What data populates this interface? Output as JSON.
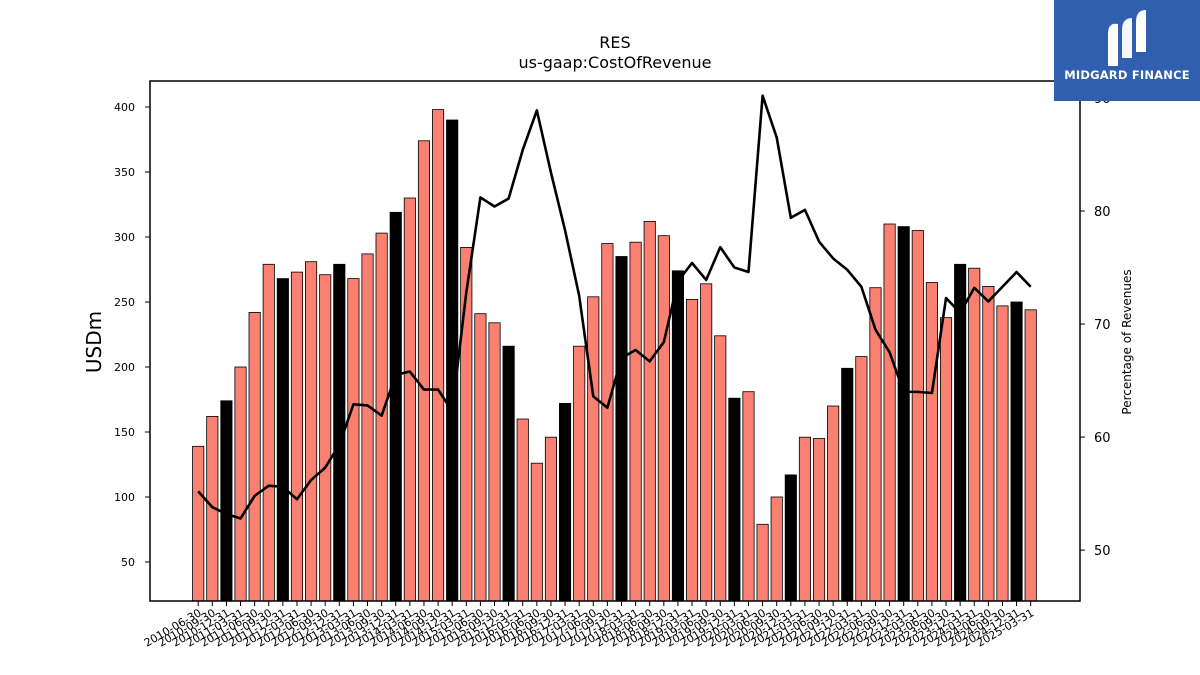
{
  "chart_data": {
    "type": "bar",
    "title": "RES",
    "subtitle": "us-gaap:CostOfRevenue",
    "ylabel": "USDm",
    "y2label": "Percentage of Revenues",
    "ylim": [
      20,
      420
    ],
    "y2lim": [
      45.5,
      91.5
    ],
    "yticks": [
      50,
      100,
      150,
      200,
      250,
      300,
      350,
      400
    ],
    "y2ticks": [
      50,
      60,
      70,
      80,
      90
    ],
    "categories": [
      "2010-06-30",
      "2010-09-30",
      "2010-12-31",
      "2011-03-31",
      "2011-06-30",
      "2011-09-30",
      "2011-12-31",
      "2012-03-31",
      "2012-06-30",
      "2012-09-30",
      "2012-12-31",
      "2013-03-31",
      "2013-06-30",
      "2013-09-30",
      "2013-12-31",
      "2014-03-31",
      "2014-06-30",
      "2014-09-30",
      "2014-12-31",
      "2015-03-31",
      "2015-06-30",
      "2015-09-30",
      "2015-12-31",
      "2016-03-31",
      "2016-06-30",
      "2016-09-30",
      "2016-12-31",
      "2017-03-31",
      "2017-06-30",
      "2017-09-30",
      "2017-12-31",
      "2018-03-31",
      "2018-06-30",
      "2018-09-30",
      "2018-12-31",
      "2019-03-31",
      "2019-06-30",
      "2019-09-30",
      "2019-12-31",
      "2020-03-31",
      "2020-06-30",
      "2020-09-30",
      "2020-12-31",
      "2021-03-31",
      "2021-06-30",
      "2021-09-30",
      "2021-12-31",
      "2022-03-31",
      "2022-06-30",
      "2022-09-30",
      "2022-12-31",
      "2023-03-31",
      "2023-06-30",
      "2023-09-30",
      "2023-12-31",
      "2024-03-31",
      "2024-06-30",
      "2024-09-30",
      "2024-12-31",
      "2025-03-31"
    ],
    "series": [
      {
        "type": "bar",
        "values": [
          139,
          162,
          174,
          200,
          242,
          279,
          268,
          273,
          281,
          271,
          279,
          268,
          287,
          303,
          319,
          330,
          374,
          398,
          390,
          292,
          241,
          234,
          216,
          160,
          126,
          146,
          172,
          216,
          254,
          295,
          285,
          296,
          312,
          301,
          274,
          252,
          264,
          224,
          176,
          181,
          79,
          100,
          117,
          146,
          145,
          170,
          199,
          208,
          261,
          310,
          308,
          305,
          265,
          238,
          279,
          276,
          262,
          247,
          250,
          244
        ]
      },
      {
        "type": "line",
        "axis": "right",
        "values": [
          55.2,
          53.8,
          53.2,
          52.8,
          54.8,
          55.7,
          55.6,
          54.5,
          56.2,
          57.3,
          59.3,
          62.9,
          62.8,
          61.9,
          65.5,
          65.8,
          64.2,
          64.2,
          62.3,
          72.8,
          81.2,
          80.4,
          81.1,
          85.4,
          88.9,
          83.4,
          78.3,
          72.5,
          63.6,
          62.6,
          67.0,
          67.7,
          66.7,
          68.4,
          73.8,
          75.4,
          73.9,
          76.8,
          75.0,
          74.6,
          90.2,
          86.5,
          79.4,
          80.1,
          77.3,
          75.8,
          74.8,
          73.3,
          69.5,
          67.5,
          64.0,
          64.0,
          63.9,
          72.3,
          71.0,
          73.2,
          72.0,
          73.3,
          74.6,
          73.3
        ]
      }
    ],
    "colors": {
      "bar_fill": "#fa8072",
      "bar_fill_year_end": "#000000",
      "bar_edge": "#000000",
      "line": "#000000"
    }
  },
  "logo": {
    "text": "MIDGARD FINANCE",
    "background": "#2f5fae",
    "icon": "midgard-m-icon"
  }
}
